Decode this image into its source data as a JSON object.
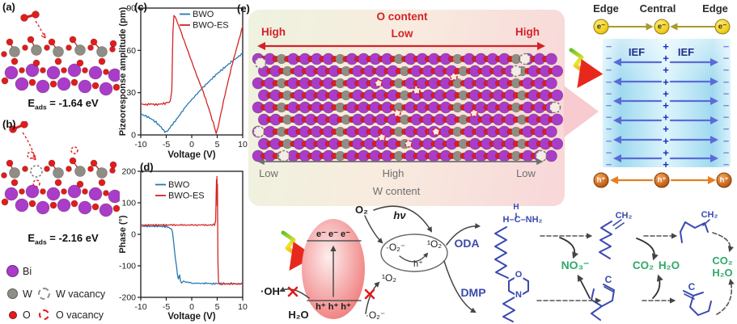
{
  "colors": {
    "bi": "#a93cc9",
    "w": "#8e8e86",
    "o": "#e11c1c",
    "accent_red": "#d4222a",
    "accent_gray": "#6f6f6f",
    "mol_blue": "#3a4aad",
    "green": "#2fa96a",
    "plus": "#1a2fb8",
    "minus": "#7a8ae0",
    "ief_arrow": "#5b6bd6",
    "ief_text": "#232f8a",
    "electron_fill": "#f2cf1e",
    "electron_edge": "#8f7d14",
    "olive_arrow": "#a89a2e",
    "hole_fill": "#c96a1d",
    "hole_edge": "#7d3c07",
    "orange_arrow": "#e87d1e",
    "box_blue": "#9fd9f0",
    "pe_left": "#eef2df",
    "pe_mid": "#f8ecdf",
    "pe_right": "#f8d8d9",
    "ellipse_in": "#fdeeee",
    "ellipse_out": "#ee6a6a",
    "x_mark": "#e21b1b",
    "callout_pink": "#f8cbd0"
  },
  "panels": {
    "a": {
      "label": "(a)",
      "eads_sym": "E",
      "eads_sub": "ads",
      "eads_val": " = -1.64 eV"
    },
    "b": {
      "label": "(b)",
      "eads_sym": "E",
      "eads_sub": "ads",
      "eads_val": " = -2.16 eV"
    },
    "c": {
      "label": "(c)"
    },
    "d": {
      "label": "(d)"
    },
    "e": {
      "label": "(e)",
      "o_content": {
        "title": "O content",
        "left": "High",
        "mid": "Low",
        "right": "High"
      },
      "w_content": {
        "title": "W content",
        "left": "Low",
        "mid": "High",
        "right": "Low"
      }
    }
  },
  "legend": {
    "bi": "Bi",
    "w": "W",
    "w_vacancy": "W vacancy",
    "o": "O",
    "o_vacancy": "O vacancy"
  },
  "chart_data": [
    {
      "id": "chartC",
      "type": "line",
      "title": "",
      "xlabel": "Voltage (V)",
      "ylabel": "Pizeoresponse amplitude (pm)",
      "xlim": [
        -10,
        10
      ],
      "ylim": [
        0,
        90
      ],
      "xticks": [
        -10,
        -5,
        0,
        5,
        10
      ],
      "yticks": [
        0,
        30,
        60,
        90
      ],
      "grid": false,
      "legend_position": "top-right",
      "series": [
        {
          "name": "BWO",
          "color": "#2878b0",
          "points": [
            [
              -10,
              15
            ],
            [
              -9.5,
              14
            ],
            [
              -9,
              13.5
            ],
            [
              -8,
              11.5
            ],
            [
              -7,
              9
            ],
            [
              -6,
              5.5
            ],
            [
              -5.5,
              3
            ],
            [
              -5,
              2
            ],
            [
              -4.5,
              4
            ],
            [
              -4,
              6.5
            ],
            [
              -3,
              11
            ],
            [
              -2,
              16
            ],
            [
              -1,
              21
            ],
            [
              0,
              25
            ],
            [
              1,
              29
            ],
            [
              2,
              33
            ],
            [
              3,
              36.5
            ],
            [
              4,
              40
            ],
            [
              5,
              43.5
            ],
            [
              6,
              46.5
            ],
            [
              7,
              49.5
            ],
            [
              8,
              52.5
            ],
            [
              9,
              55
            ],
            [
              10,
              58
            ]
          ]
        },
        {
          "name": "BWO-ES",
          "color": "#d42424",
          "points": [
            [
              -10,
              22
            ],
            [
              -9,
              21.5
            ],
            [
              -8,
              22
            ],
            [
              -7,
              21.5
            ],
            [
              -6,
              22
            ],
            [
              -5,
              22.5
            ],
            [
              -4.2,
              24
            ],
            [
              -3.9,
              32
            ],
            [
              -3.7,
              72
            ],
            [
              -3.5,
              84
            ],
            [
              -3.2,
              83
            ],
            [
              -2.8,
              80
            ],
            [
              -2.4,
              76
            ],
            [
              -2,
              72
            ],
            [
              -1.5,
              67
            ],
            [
              -1,
              62
            ],
            [
              -0.5,
              57
            ],
            [
              0,
              52
            ],
            [
              0.5,
              47
            ],
            [
              1,
              42
            ],
            [
              1.5,
              37.5
            ],
            [
              2,
              33
            ],
            [
              2.5,
              28
            ],
            [
              3,
              22.5
            ],
            [
              3.5,
              17
            ],
            [
              4,
              11
            ],
            [
              4.5,
              5.5
            ],
            [
              4.8,
              1.5
            ],
            [
              5.2,
              6
            ],
            [
              5.6,
              13
            ],
            [
              6,
              20
            ],
            [
              6.5,
              28
            ],
            [
              7,
              36
            ],
            [
              7.5,
              43.5
            ],
            [
              8,
              51
            ],
            [
              8.5,
              57.5
            ],
            [
              9,
              64
            ],
            [
              9.5,
              70.5
            ],
            [
              10,
              77
            ]
          ]
        }
      ]
    },
    {
      "id": "chartD",
      "type": "line",
      "title": "",
      "xlabel": "Voltage (V)",
      "ylabel": "Phase (°)",
      "xlim": [
        -10,
        10
      ],
      "ylim": [
        -200,
        200
      ],
      "xticks": [
        -10,
        -5,
        0,
        5,
        10
      ],
      "yticks": [
        -200,
        -100,
        0,
        100,
        200
      ],
      "grid": false,
      "legend_position": "top-left",
      "series": [
        {
          "name": "BWO",
          "color": "#2878b0",
          "points": [
            [
              -10,
              25
            ],
            [
              -9,
              26
            ],
            [
              -8,
              25
            ],
            [
              -7,
              26
            ],
            [
              -6,
              25
            ],
            [
              -5,
              24
            ],
            [
              -4.5,
              22
            ],
            [
              -4,
              16
            ],
            [
              -3.8,
              8
            ],
            [
              -3.6,
              -15
            ],
            [
              -3.4,
              -48
            ],
            [
              -3.2,
              -80
            ],
            [
              -3,
              -100
            ],
            [
              -2.8,
              -128
            ],
            [
              -2.6,
              -142
            ],
            [
              -2.4,
              -128
            ],
            [
              -2.2,
              -148
            ],
            [
              -2,
              -156
            ],
            [
              -1.6,
              -146
            ],
            [
              -1.2,
              -154
            ],
            [
              -0.8,
              -150
            ],
            [
              0,
              -156
            ],
            [
              1,
              -155
            ],
            [
              2,
              -156
            ],
            [
              3,
              -155
            ],
            [
              4,
              -157
            ],
            [
              5,
              -156
            ],
            [
              6,
              -156
            ],
            [
              7,
              -157
            ],
            [
              8,
              -156
            ],
            [
              9,
              -157
            ],
            [
              10,
              -156
            ]
          ]
        },
        {
          "name": "BWO-ES",
          "color": "#d42424",
          "points": [
            [
              -10,
              30
            ],
            [
              -9,
              29
            ],
            [
              -8,
              30
            ],
            [
              -7,
              29
            ],
            [
              -6,
              30
            ],
            [
              -5,
              29
            ],
            [
              -4,
              30
            ],
            [
              -3,
              29
            ],
            [
              -2,
              30
            ],
            [
              -1,
              29
            ],
            [
              0,
              30
            ],
            [
              1,
              29
            ],
            [
              2,
              30
            ],
            [
              3,
              29
            ],
            [
              4,
              30
            ],
            [
              4.5,
              31
            ],
            [
              4.7,
              45
            ],
            [
              4.8,
              130
            ],
            [
              4.85,
              175
            ],
            [
              4.9,
              120
            ],
            [
              4.95,
              185
            ],
            [
              5.0,
              90
            ],
            [
              5.05,
              160
            ],
            [
              5.1,
              20
            ],
            [
              5.15,
              -90
            ],
            [
              5.25,
              -150
            ],
            [
              5.4,
              -158
            ],
            [
              6,
              -157
            ],
            [
              7,
              -158
            ],
            [
              8,
              -157
            ],
            [
              9,
              -158
            ],
            [
              10,
              -157
            ]
          ]
        }
      ]
    }
  ],
  "edge_diagram": {
    "edge_left": "Edge",
    "central": "Central",
    "edge_right": "Edge",
    "electron": "e⁻",
    "hole": "h⁺",
    "ief_left": "IEF",
    "ief_right": "IEF",
    "plus": "+",
    "minus": "−",
    "plus_count": 11,
    "minus_count": 11
  },
  "reaction": {
    "o2": "O₂",
    "hv": "hν",
    "superoxide": "·O₂⁻",
    "singlet_o2": "¹O₂",
    "h_plus": "h⁺",
    "electrons": "e⁻ e⁻ e⁻",
    "holes": "h⁺ h⁺ h⁺",
    "oh_radical": "·OH",
    "h2o": "H₂O",
    "singlet_o2_blocked": "¹O₂",
    "superoxide_bottom": "·O₂⁻",
    "oda": "ODA",
    "dmp": "DMP",
    "oda_head_h": "H",
    "oda_head": "H–C–NH₂",
    "ring_o": "O",
    "ring_n": "N",
    "no3": "NO₃⁻",
    "co2_mid": "CO₂",
    "h2o_mid": "H₂O",
    "ch2_intermediate": "CH₂",
    "c_intermediate": "C",
    "ch2_fragment": "CH₂",
    "c_fragment": "C",
    "co2_right": "CO₂",
    "h2o_right": "H₂O"
  }
}
